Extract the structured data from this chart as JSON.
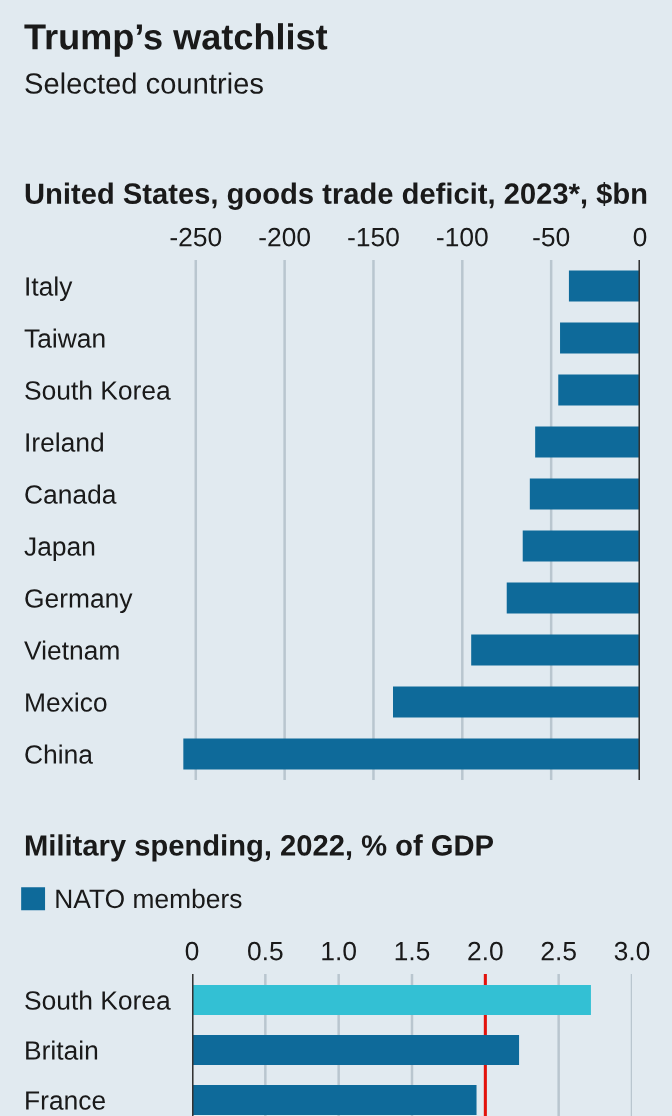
{
  "chart_data": [
    {
      "type": "bar",
      "orientation": "horizontal",
      "title": "Trump’s watchlist",
      "subtitle": "Selected countries",
      "xlabel": "United States, goods trade deficit, 2023*, $bn",
      "categories": [
        "Italy",
        "Taiwan",
        "South Korea",
        "Ireland",
        "Canada",
        "Japan",
        "Germany",
        "Vietnam",
        "Mexico",
        "China"
      ],
      "values": [
        -40,
        -45,
        -46,
        -59,
        -62,
        -66,
        -75,
        -95,
        -139,
        -257
      ],
      "color": "#0e6a9a",
      "xlim": [
        -260,
        0
      ],
      "xticks": [
        -250,
        -200,
        -150,
        -100,
        -50,
        0
      ],
      "grid": "x"
    },
    {
      "type": "bar",
      "orientation": "horizontal",
      "title": "Military spending, 2022, % of GDP",
      "categories": [
        "South Korea",
        "Britain",
        "France"
      ],
      "series": [
        {
          "name": "NATO members",
          "color": "#0e6a9a",
          "values": [
            null,
            2.23,
            1.94
          ]
        },
        {
          "color": "#33c0d4",
          "values": [
            2.72,
            null,
            null
          ]
        }
      ],
      "xlim": [
        0,
        3.0
      ],
      "xticks": [
        0,
        {
          "value": 0.5,
          "label": "0.5"
        },
        {
          "value": 1.0,
          "label": "1.0"
        },
        {
          "value": 1.5,
          "label": "1.5"
        },
        {
          "value": 2.0,
          "label": "2.0"
        },
        {
          "value": 2.5,
          "label": "2.5"
        },
        {
          "value": 3.0,
          "label": "3.0"
        }
      ],
      "grid": "x",
      "legend": "top left",
      "ref_lines": [
        {
          "axis": "x",
          "value": 2.0,
          "color": "#e3120b"
        }
      ]
    }
  ]
}
